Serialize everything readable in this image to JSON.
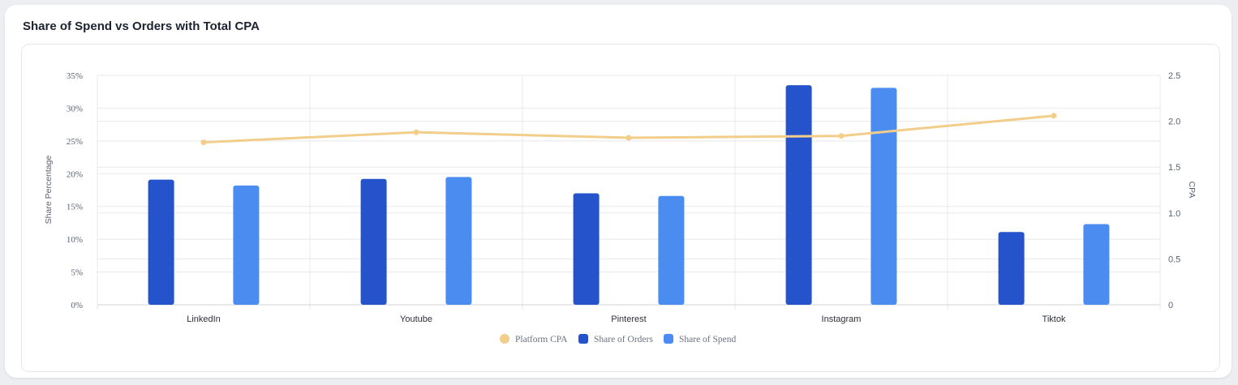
{
  "card": {
    "title": "Share of Spend vs Orders with Total CPA"
  },
  "colors": {
    "orders": "#2453cc",
    "spend": "#4a8cf0",
    "cpa": "#f3cd8a",
    "grid": "#e6e8ec"
  },
  "chart_data": {
    "type": "bar",
    "categories": [
      "LinkedIn",
      "Youtube",
      "Pinterest",
      "Instagram",
      "Tiktok"
    ],
    "series": [
      {
        "name": "Platform CPA",
        "kind": "line",
        "axis": "right",
        "values": [
          1.77,
          1.88,
          1.82,
          1.84,
          2.06
        ]
      },
      {
        "name": "Share of Orders",
        "kind": "bar",
        "axis": "left",
        "values": [
          19.1,
          19.2,
          17.0,
          33.5,
          11.1
        ]
      },
      {
        "name": "Share of Spend",
        "kind": "bar",
        "axis": "left",
        "values": [
          18.2,
          19.5,
          16.6,
          33.1,
          12.3
        ]
      }
    ],
    "ylabel": "Share Percentage",
    "y2label": "CPA",
    "ylim": [
      0,
      35
    ],
    "y2lim": [
      0,
      2.5
    ],
    "y_ticks": [
      "0%",
      "5%",
      "10%",
      "15%",
      "20%",
      "25%",
      "30%",
      "35%"
    ],
    "y2_ticks": [
      "0",
      "0.5",
      "1.0",
      "1.5",
      "2.0",
      "2.5"
    ],
    "grid": true,
    "legend": "bottom-center"
  }
}
